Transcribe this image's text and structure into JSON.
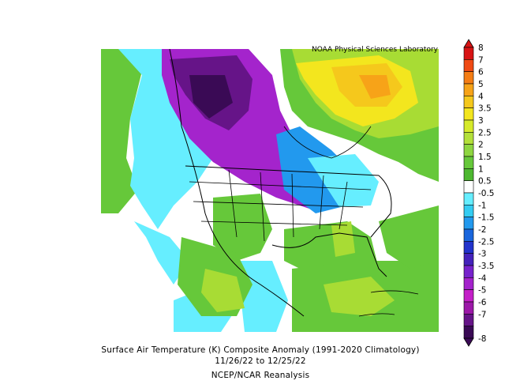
{
  "credit": "NOAA Physical Sciences Laboratory",
  "caption": {
    "line1": "Surface Air Temperature (K) Composite Anomaly (1991-2020 Climatology)",
    "line2": "11/26/22  to 12/25/22",
    "line3": "NCEP/NCAR Reanalysis"
  },
  "colorbar": {
    "labels": [
      "8",
      "7",
      "6",
      "5",
      "4",
      "3.5",
      "3",
      "2.5",
      "2",
      "1.5",
      "1",
      "0.5",
      "-0.5",
      "-1",
      "-1.5",
      "-2",
      "-2.5",
      "-3",
      "-3.5",
      "-4",
      "-5",
      "-6",
      "-7",
      "-8"
    ],
    "colors": [
      "#d81414",
      "#f04a14",
      "#f57d14",
      "#f7a318",
      "#f5c81c",
      "#f3e61e",
      "#d6ea2a",
      "#b3e03a",
      "#8ed640",
      "#66c83a",
      "#4db830",
      "#ffffff",
      "#66eeff",
      "#33ccf2",
      "#2299ee",
      "#1a66dd",
      "#2233cc",
      "#4422bb",
      "#7722cc",
      "#a422cc",
      "#c41fc8",
      "#9c18a8",
      "#661488",
      "#3a0a55"
    ]
  },
  "colors": {
    "warm_green": "#7ed63a",
    "yellow_green": "#a8dc34",
    "yellow": "#f2e41c",
    "orange": "#f2c01c",
    "cyan": "#66eeff",
    "purple": "#a424cc",
    "deep_purple": "#661488"
  }
}
